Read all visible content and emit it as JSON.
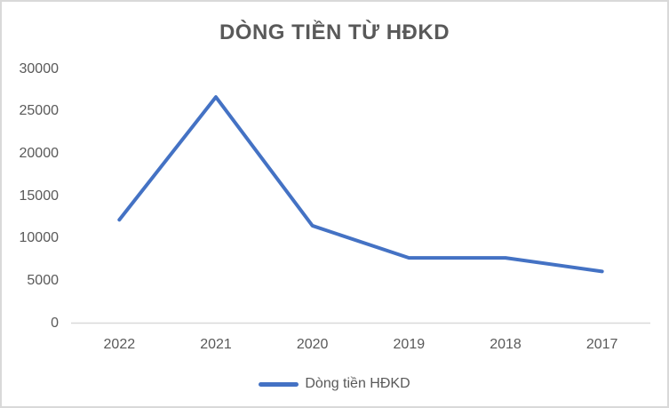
{
  "chart_data": {
    "type": "line",
    "title": "DÒNG TIỀN TỪ HĐKD",
    "categories": [
      "2022",
      "2021",
      "2020",
      "2019",
      "2018",
      "2017"
    ],
    "series": [
      {
        "name": "Dòng tiền HĐKD",
        "values": [
          12200,
          26700,
          11500,
          7700,
          7700,
          6100
        ],
        "color": "#4472C4"
      }
    ],
    "xlabel": "",
    "ylabel": "",
    "ylim": [
      0,
      30000
    ],
    "yticks": [
      0,
      5000,
      10000,
      15000,
      20000,
      25000,
      30000
    ],
    "grid": false,
    "legend_position": "bottom",
    "colors": {
      "text": "#595959",
      "axis_line": "#d9d9d9",
      "border": "#d9d9d9",
      "background": "#ffffff"
    }
  },
  "legend": {
    "label": "Dòng tiền HĐKD"
  }
}
